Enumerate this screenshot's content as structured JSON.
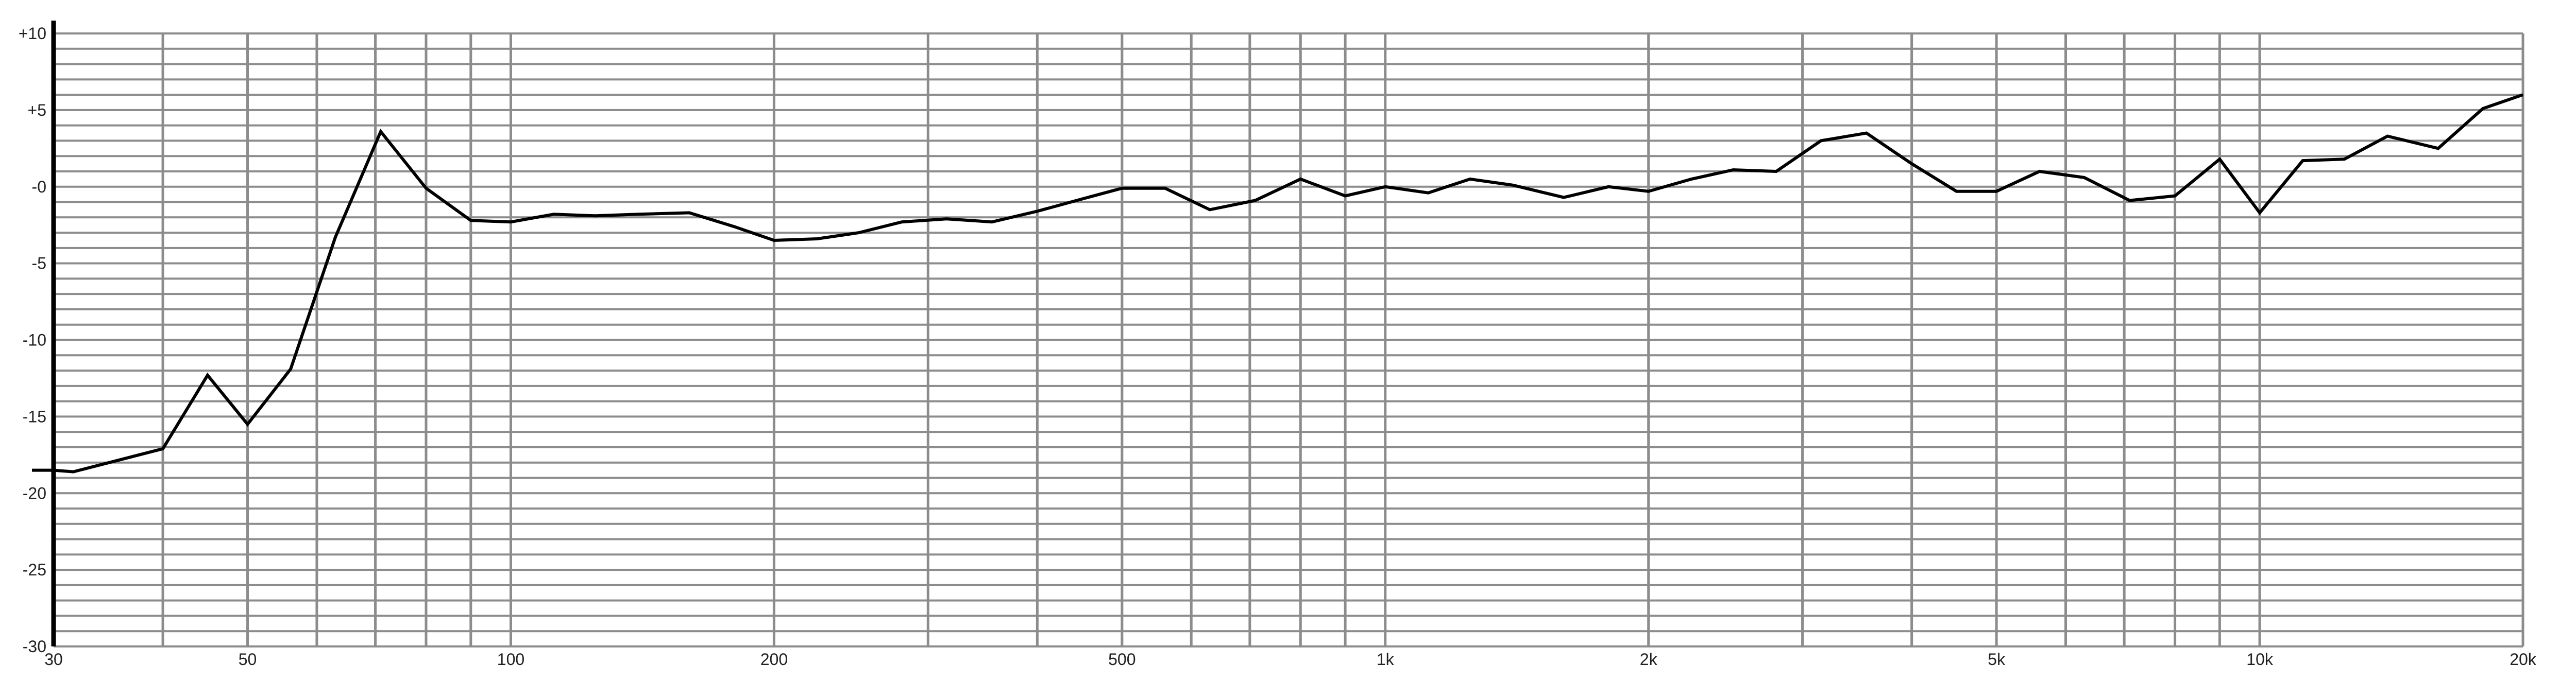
{
  "chart_data": {
    "type": "line",
    "title": "",
    "xlabel": "",
    "ylabel": "",
    "x_scale": "log",
    "xlim": [
      30,
      20000
    ],
    "ylim": [
      -30,
      10
    ],
    "grid": true,
    "x_tick_labels": [
      {
        "value": 30,
        "label": "30"
      },
      {
        "value": 50,
        "label": "50"
      },
      {
        "value": 100,
        "label": "100"
      },
      {
        "value": 200,
        "label": "200"
      },
      {
        "value": 500,
        "label": "500"
      },
      {
        "value": 1000,
        "label": "1k"
      },
      {
        "value": 2000,
        "label": "2k"
      },
      {
        "value": 5000,
        "label": "5k"
      },
      {
        "value": 10000,
        "label": "10k"
      },
      {
        "value": 20000,
        "label": "20k"
      }
    ],
    "x_gridlines": [
      30,
      40,
      50,
      60,
      70,
      80,
      90,
      100,
      200,
      300,
      400,
      500,
      600,
      700,
      800,
      900,
      1000,
      2000,
      3000,
      4000,
      5000,
      6000,
      7000,
      8000,
      9000,
      10000,
      20000
    ],
    "y_tick_labels": [
      {
        "value": 10,
        "label": "+10"
      },
      {
        "value": 5,
        "label": "+5"
      },
      {
        "value": 0,
        "label": "-0"
      },
      {
        "value": -5,
        "label": "-5"
      },
      {
        "value": -10,
        "label": "-10"
      },
      {
        "value": -15,
        "label": "-15"
      },
      {
        "value": -20,
        "label": "-20"
      },
      {
        "value": -25,
        "label": "-25"
      },
      {
        "value": -30,
        "label": "-30"
      }
    ],
    "y_grid_step": 1,
    "colors": {
      "line": "#000000",
      "grid": "#8c8c8c",
      "axis": "#000000"
    },
    "series": [
      {
        "x": [
          30,
          31.6,
          40,
          45,
          50,
          56,
          63,
          71,
          80,
          90,
          100,
          112,
          125,
          140,
          160,
          180,
          200,
          224,
          250,
          280,
          315,
          355,
          400,
          450,
          500,
          560,
          630,
          710,
          800,
          900,
          1000,
          1120,
          1250,
          1400,
          1600,
          1800,
          2000,
          2240,
          2500,
          2800,
          3150,
          3550,
          4000,
          4500,
          5000,
          5600,
          6300,
          7100,
          8000,
          9000,
          10000,
          11200,
          12500,
          14000,
          16000,
          18000,
          20000
        ],
        "y": [
          -18.5,
          -18.6,
          -17.1,
          -12.3,
          -15.5,
          -11.9,
          -3.3,
          3.6,
          -0.1,
          -2.2,
          -2.3,
          -1.8,
          -1.9,
          -1.8,
          -1.7,
          -2.6,
          -3.5,
          -3.4,
          -3.0,
          -2.3,
          -2.1,
          -2.3,
          -1.6,
          -0.8,
          -0.1,
          -0.1,
          -1.5,
          -0.9,
          0.5,
          -0.6,
          0.0,
          -0.4,
          0.5,
          0.1,
          -0.7,
          0.0,
          -0.3,
          0.5,
          1.1,
          1.0,
          3.0,
          3.5,
          1.5,
          -0.3,
          -0.3,
          1.0,
          0.6,
          -0.9,
          -0.6,
          1.8,
          -1.7,
          1.7,
          1.8,
          3.3,
          2.5,
          5.1,
          6.0
        ]
      }
    ]
  }
}
